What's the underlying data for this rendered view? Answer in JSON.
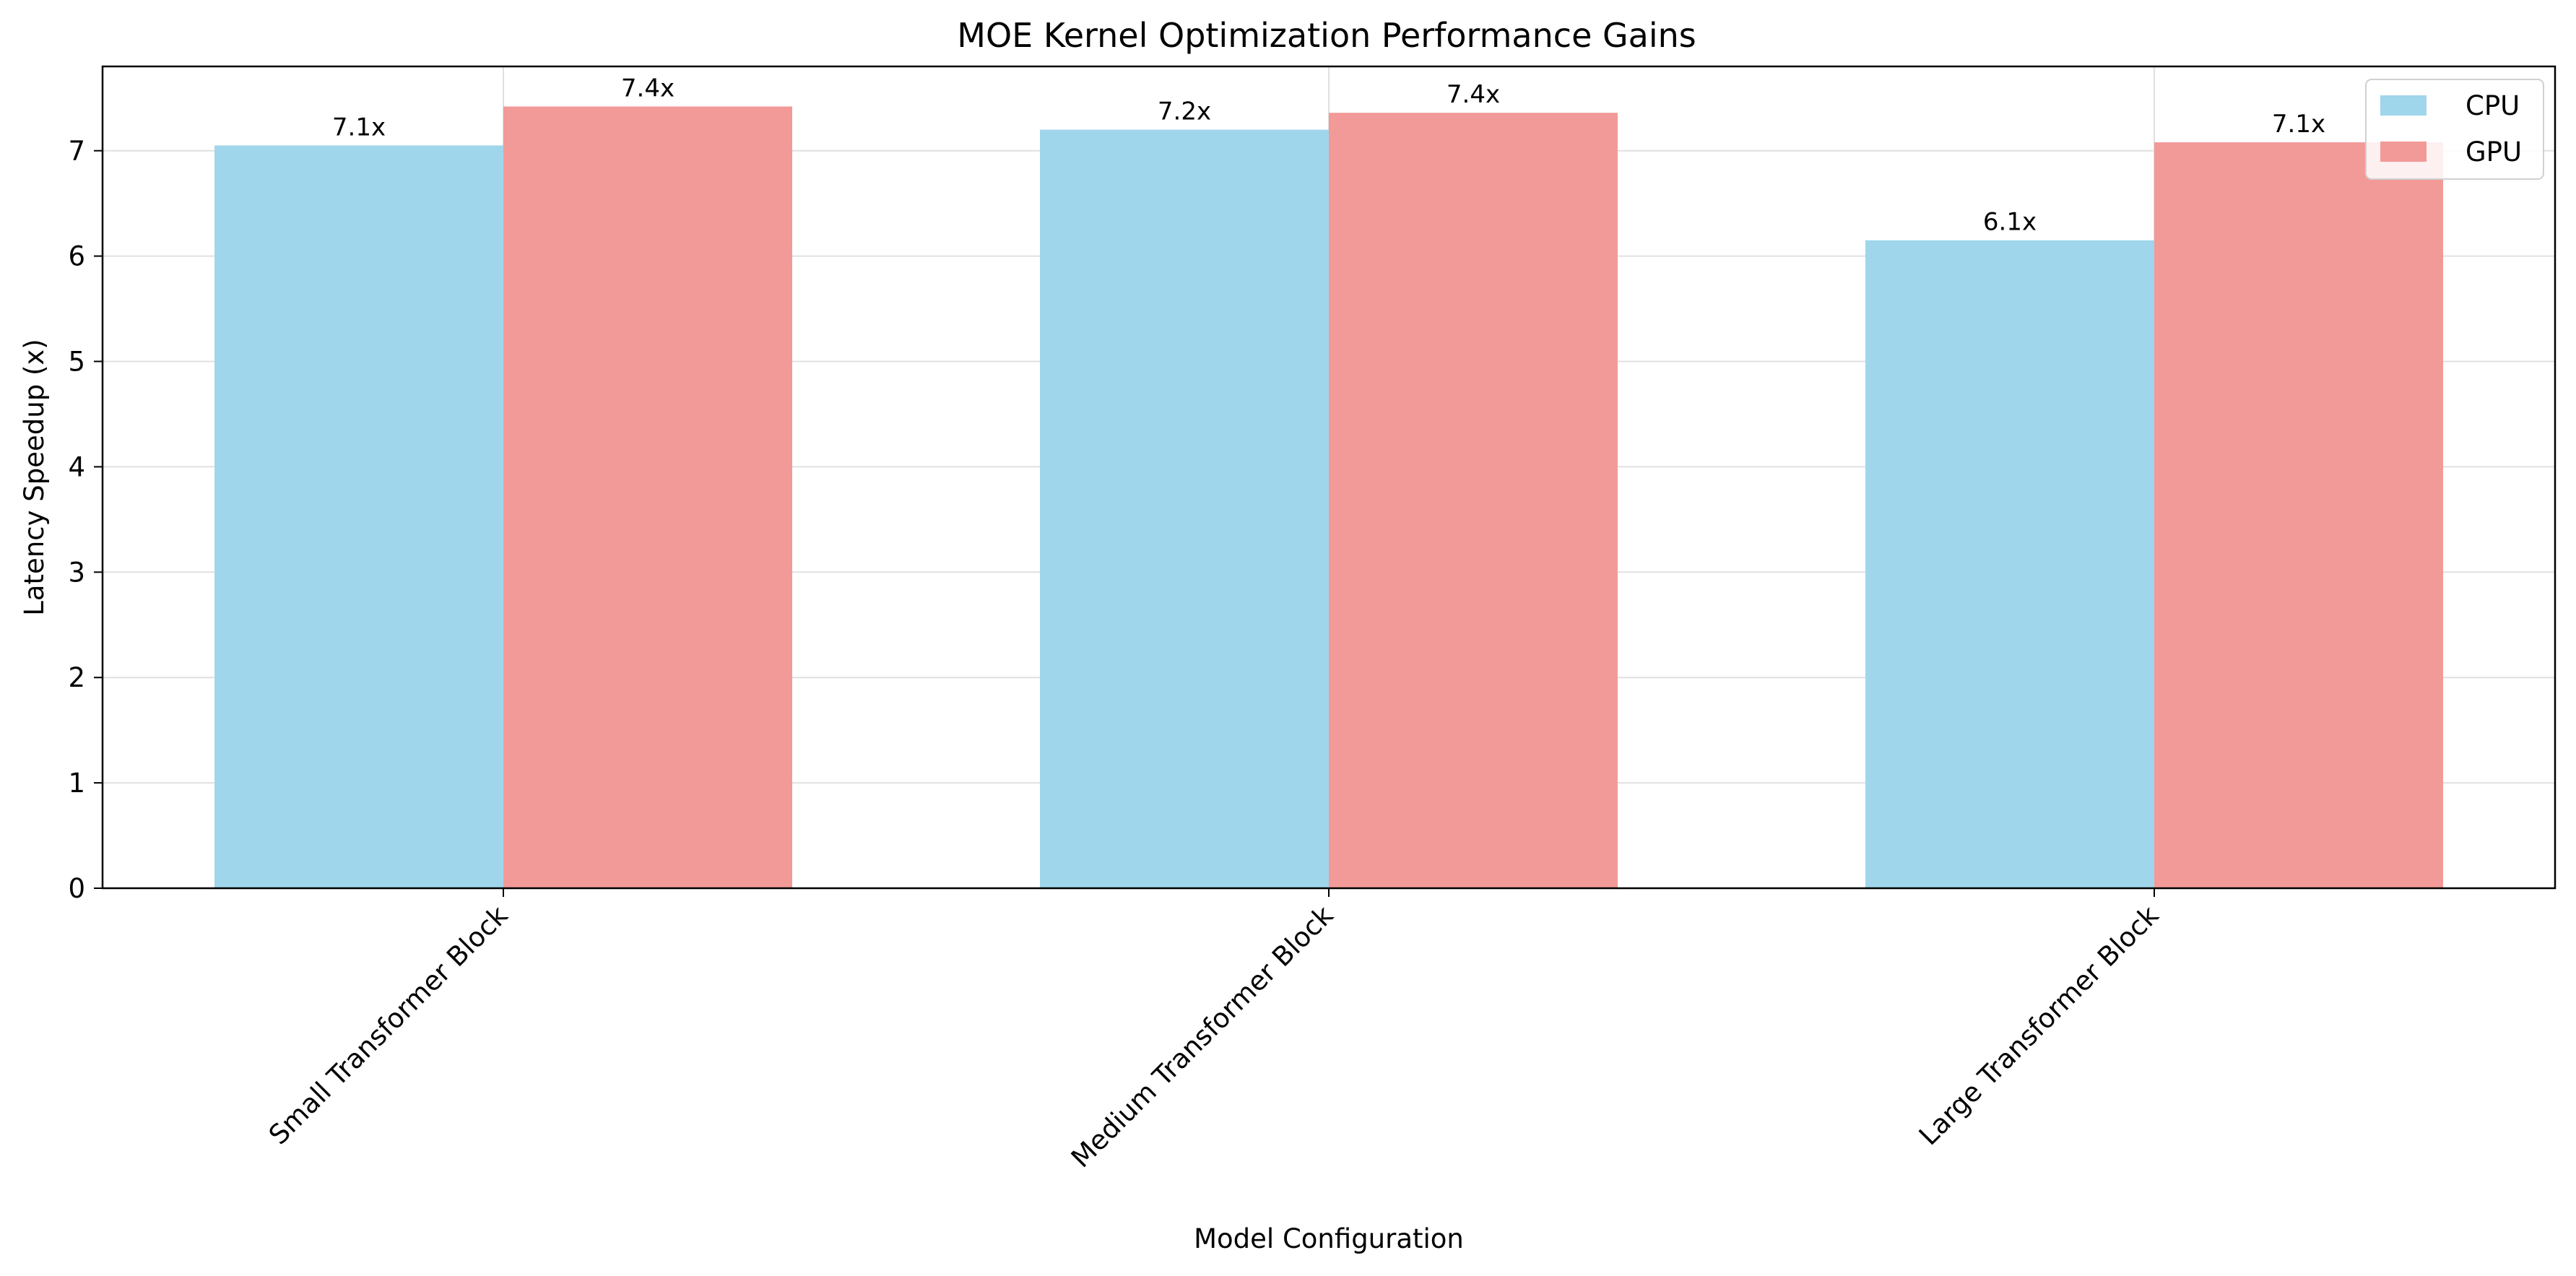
{
  "chart_data": {
    "type": "bar",
    "title": "MOE Kernel Optimization Performance Gains",
    "xlabel": "Model Configuration",
    "ylabel": "Latency Speedup (x)",
    "categories": [
      "Small Transformer Block",
      "Medium Transformer Block",
      "Large Transformer Block"
    ],
    "series": [
      {
        "name": "CPU",
        "color": "#9fd6eb",
        "values": [
          7.05,
          7.2,
          6.15
        ],
        "labels": [
          "7.1x",
          "7.2x",
          "6.1x"
        ]
      },
      {
        "name": "GPU",
        "color": "#f29a98",
        "values": [
          7.42,
          7.36,
          7.08
        ],
        "labels": [
          "7.4x",
          "7.4x",
          "7.1x"
        ]
      }
    ],
    "ylim": [
      0,
      7.8
    ],
    "yticks": [
      "0",
      "1",
      "2",
      "3",
      "4",
      "5",
      "6",
      "7"
    ],
    "grid": true,
    "legend_position": "top-right"
  }
}
